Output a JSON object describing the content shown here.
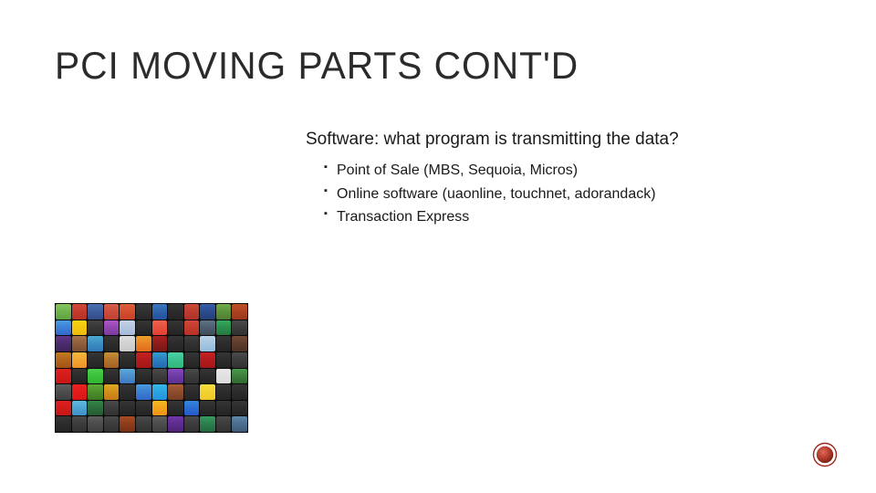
{
  "slide": {
    "title": "PCI MOVING PARTS CONT'D",
    "subtitle": "Software: what program is transmitting the data?",
    "bullets": [
      "Point of Sale (MBS, Sequoia, Micros)",
      "Online software (uaonline, touchnet, adorandack)",
      "Transaction Express"
    ],
    "title_color": "#2b2b2b",
    "text_color": "#1a1a1a",
    "background_color": "#ffffff",
    "title_fontsize": 42,
    "subtitle_fontsize": 19,
    "bullet_fontsize": 16
  },
  "icon_grid": {
    "rows": 8,
    "cols": 12,
    "background": "#0a0a0a",
    "cell_colors": [
      "#6bb04a",
      "#c0392b",
      "#3b5998",
      "#c94a3b",
      "#d14b2e",
      "#2e2e2e",
      "#2e5ea8",
      "#2a2a2a",
      "#b93a2e",
      "#2a4a8a",
      "#5a8f3a",
      "#a84020",
      "#3a7bd5",
      "#f1c40f",
      "#353535",
      "#8e44ad",
      "#b0c4de",
      "#2a2a2a",
      "#e74c3c",
      "#2a2a2a",
      "#c0392b",
      "#4a5a6a",
      "#2a8a4a",
      "#3a3a3a",
      "#4a2a6a",
      "#8a5a3a",
      "#3a8abf",
      "#2a2a2a",
      "#d0d0d0",
      "#e67e22",
      "#8a1a1a",
      "#2a2a2a",
      "#303030",
      "#a0c4e0",
      "#2a2a2a",
      "#5a3a2a",
      "#b0601a",
      "#f0a030",
      "#2a2a2a",
      "#b0702a",
      "#2a2a2a",
      "#b01a1a",
      "#2a7aba",
      "#3abf8a",
      "#2a2a2a",
      "#b01a1a",
      "#2a2a2a",
      "#3a3a3a",
      "#d01a1a",
      "#2a2a2a",
      "#3abf3a",
      "#2a2a2a",
      "#4a8aca",
      "#2a2a2a",
      "#3a3a3a",
      "#6a3aa0",
      "#3a3a3a",
      "#2a2a2a",
      "#e0e0e0",
      "#3a7a3a",
      "#4a4a4a",
      "#e01a1a",
      "#4a8a2a",
      "#d08a1a",
      "#2a2a2a",
      "#3a7ad0",
      "#2aa0e0",
      "#8a4a2a",
      "#2a2a2a",
      "#f0d030",
      "#2a2a2a",
      "#2a2a2a",
      "#d01a1a",
      "#4aa0d0",
      "#2a6a3a",
      "#3a3a3a",
      "#2a2a2a",
      "#2a2a2a",
      "#f0a01a",
      "#2a2a2a",
      "#2a6ad0",
      "#2a2a2a",
      "#2a2a2a",
      "#2a2a2a",
      "#2a2a2a",
      "#3a3a3a",
      "#4a4a4a",
      "#3a3a3a",
      "#8a3a1a",
      "#3a3a3a",
      "#4a4a4a",
      "#5a2a8a",
      "#3a3a3a",
      "#2a7a4a",
      "#3a3a3a",
      "#4a6a8a"
    ]
  },
  "corner_badge": {
    "outer_stroke": "#9c2b1f",
    "outer_fill": "#ffffff",
    "inner_fill_top": "#c94a3b",
    "inner_fill_bottom": "#8a281c",
    "size": 28
  }
}
